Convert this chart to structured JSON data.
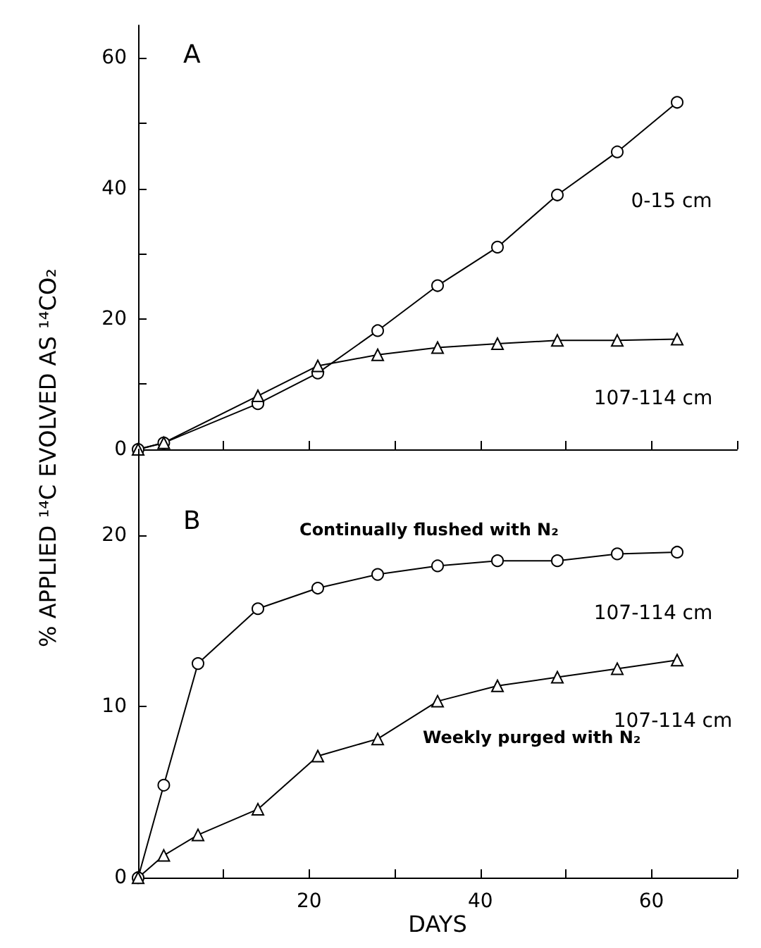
{
  "chart_data": [
    {
      "type": "line",
      "annotations": [
        "A"
      ],
      "xlim": [
        0,
        70
      ],
      "xticks": [
        {
          "value": 10,
          "label": null
        },
        20,
        {
          "value": 30,
          "label": null
        },
        40,
        {
          "value": 50,
          "label": null
        },
        60,
        {
          "value": 70,
          "label": null
        }
      ],
      "ylim": [
        0,
        65
      ],
      "yticks": [
        0,
        {
          "value": 10,
          "label": null
        },
        20,
        {
          "value": 30,
          "label": null
        },
        40,
        {
          "value": 50,
          "label": null
        },
        60
      ],
      "tick_labels": "y",
      "grid": false,
      "legend": false,
      "line_style": "solid",
      "series": [
        {
          "name": "0-15 cm",
          "color": "#000000",
          "marker": "circle",
          "x": [
            0,
            3,
            14,
            21,
            28,
            35,
            42,
            49,
            56,
            63
          ],
          "values": [
            0,
            1,
            7,
            11.7,
            18.2,
            25.1,
            31,
            39,
            45.6,
            53.2
          ]
        },
        {
          "name": "107-114 cm",
          "color": "#000000",
          "marker": "triangle",
          "x": [
            0,
            3,
            14,
            21,
            28,
            35,
            42,
            49,
            56,
            63
          ],
          "values": [
            0,
            1,
            8.2,
            12.8,
            14.5,
            15.6,
            16.2,
            16.7,
            16.7,
            16.9
          ]
        }
      ]
    },
    {
      "type": "line",
      "ylabel": "% APPLIED ¹⁴C EVOLVED AS ¹⁴CO₂",
      "xlabel": "DAYS",
      "annotations": [
        "B",
        "Continually flushed with N₂",
        "Weekly purged with N₂"
      ],
      "xlim": [
        0,
        70
      ],
      "xticks": [
        {
          "value": 10,
          "label": null
        },
        20,
        {
          "value": 30,
          "label": null
        },
        40,
        {
          "value": 50,
          "label": null
        },
        60,
        {
          "value": 70,
          "label": null
        }
      ],
      "ylim": [
        0,
        25
      ],
      "yticks": [
        0,
        10,
        20
      ],
      "grid": false,
      "legend": false,
      "line_style": "solid",
      "series": [
        {
          "name": "107-114 cm",
          "color": "#000000",
          "marker": "circle",
          "x": [
            0,
            3,
            7,
            14,
            21,
            28,
            35,
            42,
            49,
            56,
            63
          ],
          "values": [
            0,
            5.4,
            12.5,
            15.7,
            16.9,
            17.7,
            18.2,
            18.5,
            18.5,
            18.9,
            19.0
          ]
        },
        {
          "name": "107-114 cm",
          "color": "#000000",
          "marker": "triangle",
          "x": [
            0,
            3,
            7,
            14,
            21,
            28,
            35,
            42,
            49,
            56,
            63
          ],
          "values": [
            0,
            1.3,
            2.5,
            4.0,
            7.1,
            8.1,
            10.3,
            11.2,
            11.7,
            12.2,
            12.7
          ]
        }
      ]
    }
  ]
}
